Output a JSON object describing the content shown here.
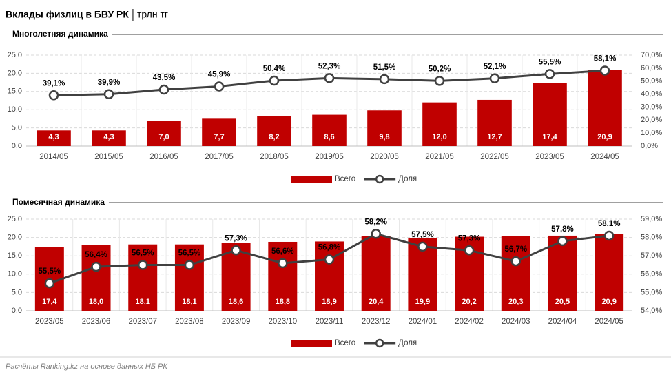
{
  "title": "Вклады физлиц в БВУ РК",
  "unit": "трлн тг",
  "source": "Расчёты Ranking.kz на основе данных НБ РК",
  "chart_data": [
    {
      "type": "combo",
      "subtitle": "Многолетняя динамика",
      "categories": [
        "2014/05",
        "2015/05",
        "2016/05",
        "2017/05",
        "2018/05",
        "2019/05",
        "2020/05",
        "2021/05",
        "2022/05",
        "2023/05",
        "2024/05"
      ],
      "series": [
        {
          "name": "Всего",
          "type": "bar",
          "color": "#c00000",
          "values": [
            4.3,
            4.3,
            7.0,
            7.7,
            8.2,
            8.6,
            9.8,
            12.0,
            12.7,
            17.4,
            20.9
          ],
          "value_labels": [
            "4,3",
            "4,3",
            "7,0",
            "7,7",
            "8,2",
            "8,6",
            "9,8",
            "12,0",
            "12,7",
            "17,4",
            "20,9"
          ]
        },
        {
          "name": "Доля",
          "type": "line",
          "axis": "y2",
          "color": "#404040",
          "values": [
            39.1,
            39.9,
            43.5,
            45.9,
            50.4,
            52.3,
            51.5,
            50.2,
            52.1,
            55.5,
            58.1
          ],
          "value_labels": [
            "39,1%",
            "39,9%",
            "43,5%",
            "45,9%",
            "50,4%",
            "52,3%",
            "51,5%",
            "50,2%",
            "52,1%",
            "55,5%",
            "58,1%"
          ]
        }
      ],
      "ylim": [
        0,
        25
      ],
      "yticks": [
        {
          "value": 0,
          "label": "0,0"
        },
        {
          "value": 5,
          "label": "5,0"
        },
        {
          "value": 10,
          "label": "10,0"
        },
        {
          "value": 15,
          "label": "15,0"
        },
        {
          "value": 20,
          "label": "20,0"
        },
        {
          "value": 25,
          "label": "25,0"
        }
      ],
      "y2lim": [
        0,
        70
      ],
      "y2ticks": [
        {
          "value": 0,
          "label": "0,0%"
        },
        {
          "value": 10,
          "label": "10,0%"
        },
        {
          "value": 20,
          "label": "20,0%"
        },
        {
          "value": 30,
          "label": "30,0%"
        },
        {
          "value": 40,
          "label": "40,0%"
        },
        {
          "value": 50,
          "label": "50,0%"
        },
        {
          "value": 60,
          "label": "60,0%"
        },
        {
          "value": 70,
          "label": "70,0%"
        }
      ],
      "grid": true,
      "legend": "bottom"
    },
    {
      "type": "combo",
      "subtitle": "Помесячная динамика",
      "categories": [
        "2023/05",
        "2023/06",
        "2023/07",
        "2023/08",
        "2023/09",
        "2023/10",
        "2023/11",
        "2023/12",
        "2024/01",
        "2024/02",
        "2024/03",
        "2024/04",
        "2024/05"
      ],
      "series": [
        {
          "name": "Всего",
          "type": "bar",
          "color": "#c00000",
          "values": [
            17.4,
            18.0,
            18.1,
            18.1,
            18.6,
            18.8,
            18.9,
            20.4,
            19.9,
            20.2,
            20.3,
            20.5,
            20.9
          ],
          "value_labels": [
            "17,4",
            "18,0",
            "18,1",
            "18,1",
            "18,6",
            "18,8",
            "18,9",
            "20,4",
            "19,9",
            "20,2",
            "20,3",
            "20,5",
            "20,9"
          ]
        },
        {
          "name": "Доля",
          "type": "line",
          "axis": "y2",
          "color": "#404040",
          "values": [
            55.5,
            56.4,
            56.5,
            56.5,
            57.3,
            56.6,
            56.8,
            58.2,
            57.5,
            57.3,
            56.7,
            57.8,
            58.1
          ],
          "value_labels": [
            "55,5%",
            "56,4%",
            "56,5%",
            "56,5%",
            "57,3%",
            "56,6%",
            "56,8%",
            "58,2%",
            "57,5%",
            "57,3%",
            "56,7%",
            "57,8%",
            "58,1%"
          ]
        }
      ],
      "ylim": [
        0,
        25
      ],
      "yticks": [
        {
          "value": 0,
          "label": "0,0"
        },
        {
          "value": 5,
          "label": "5,0"
        },
        {
          "value": 10,
          "label": "10,0"
        },
        {
          "value": 15,
          "label": "15,0"
        },
        {
          "value": 20,
          "label": "20,0"
        },
        {
          "value": 25,
          "label": "25,0"
        }
      ],
      "y2lim": [
        54,
        59
      ],
      "y2ticks": [
        {
          "value": 54,
          "label": "54,0%"
        },
        {
          "value": 55,
          "label": "55,0%"
        },
        {
          "value": 56,
          "label": "56,0%"
        },
        {
          "value": 57,
          "label": "57,0%"
        },
        {
          "value": 58,
          "label": "58,0%"
        },
        {
          "value": 59,
          "label": "59,0%"
        }
      ],
      "grid": true,
      "legend": "bottom"
    }
  ]
}
